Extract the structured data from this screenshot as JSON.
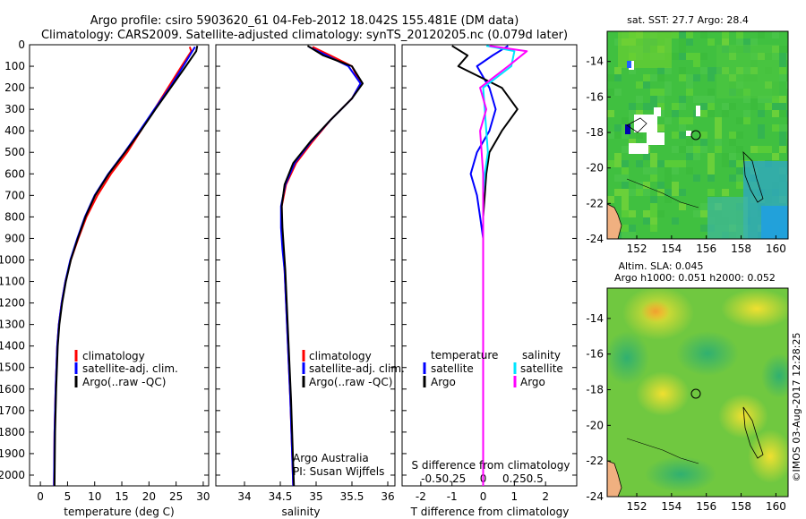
{
  "header": {
    "line1": "Argo profile: csiro 5903620_61 04-Feb-2012 18.042S 155.481E (DM data)",
    "line2": "Climatology: CARS2009. Satellite-adjusted climatology: synTS_20120205.nc (0.079d later)"
  },
  "colors": {
    "climatology": "#ff0000",
    "satellite": "#0000ff",
    "argo": "#000000",
    "sat_salinity": "#00e5ff",
    "argo_salinity": "#ff00ff"
  },
  "chart_data": [
    {
      "type": "line",
      "id": "temperature",
      "xlabel": "temperature (deg C)",
      "xlim": [
        -2,
        31
      ],
      "xticks": [
        0,
        5,
        10,
        15,
        20,
        25,
        30
      ],
      "ylim": [
        0,
        2050
      ],
      "yticks": [
        0,
        100,
        200,
        300,
        400,
        500,
        600,
        700,
        800,
        900,
        1000,
        1100,
        1200,
        1300,
        1400,
        1500,
        1600,
        1700,
        1800,
        1900,
        2000
      ],
      "legend": [
        "climatology",
        "satellite-adj. clim.",
        "Argo(..raw -QC)"
      ],
      "series": [
        {
          "name": "climatology",
          "color": "#ff0000",
          "x": [
            27.5,
            27.8,
            26,
            23.5,
            21,
            18.5,
            16,
            13,
            10.5,
            8.5,
            7,
            5.6,
            4.6,
            3.9,
            3.4,
            3.1,
            2.8,
            2.6,
            2.5
          ],
          "y": [
            10,
            30,
            100,
            200,
            300,
            400,
            500,
            600,
            700,
            800,
            900,
            1000,
            1100,
            1200,
            1300,
            1400,
            1600,
            1800,
            2050
          ]
        },
        {
          "name": "satellite-adj. clim.",
          "color": "#0000ff",
          "x": [
            28.5,
            28,
            26.3,
            23.8,
            21,
            18.3,
            15.5,
            12.5,
            10,
            8.2,
            6.8,
            5.5,
            4.6,
            3.9,
            3.4,
            3.1,
            2.8,
            2.6,
            2.5
          ],
          "y": [
            10,
            30,
            100,
            200,
            300,
            400,
            500,
            600,
            700,
            800,
            900,
            1000,
            1100,
            1200,
            1300,
            1400,
            1600,
            1800,
            2050
          ]
        },
        {
          "name": "Argo(..raw -QC)",
          "color": "#000000",
          "x": [
            28.9,
            28.7,
            26.8,
            24,
            21.2,
            18.5,
            15.6,
            12.6,
            10.1,
            8.3,
            6.9,
            5.6,
            4.7,
            4,
            3.5,
            3.2,
            2.9,
            2.7,
            2.6
          ],
          "y": [
            5,
            30,
            100,
            200,
            300,
            400,
            500,
            600,
            700,
            800,
            900,
            1000,
            1100,
            1200,
            1300,
            1400,
            1600,
            1800,
            2050
          ]
        }
      ]
    },
    {
      "type": "line",
      "id": "salinity",
      "xlabel": "salinity",
      "xlim": [
        33.6,
        36.1
      ],
      "xticks": [
        34,
        34.5,
        35,
        35.5,
        36
      ],
      "ylim": [
        0,
        2050
      ],
      "legend": [
        "climatology",
        "satellite-adj. clim.",
        "Argo(..raw -QC)"
      ],
      "annotation": [
        "Argo Australia",
        "PI: Susan Wijffels"
      ],
      "series": [
        {
          "name": "climatology",
          "color": "#ff0000",
          "x": [
            34.95,
            35.2,
            35.5,
            35.62,
            35.5,
            35.2,
            34.95,
            34.72,
            34.58,
            34.52,
            34.52,
            34.54,
            34.56,
            34.58,
            34.6,
            34.62,
            34.64,
            34.66,
            34.68
          ],
          "y": [
            10,
            50,
            100,
            180,
            250,
            350,
            450,
            550,
            650,
            750,
            850,
            950,
            1050,
            1200,
            1350,
            1500,
            1650,
            1850,
            2050
          ]
        },
        {
          "name": "satellite-adj. clim.",
          "color": "#0000ff",
          "x": [
            34.9,
            35.15,
            35.45,
            35.62,
            35.5,
            35.2,
            34.93,
            34.7,
            34.57,
            34.51,
            34.51,
            34.53,
            34.56,
            34.58,
            34.6,
            34.62,
            34.64,
            34.66,
            34.68
          ],
          "y": [
            10,
            50,
            100,
            180,
            250,
            350,
            450,
            550,
            650,
            750,
            850,
            950,
            1050,
            1200,
            1350,
            1500,
            1650,
            1850,
            2050
          ]
        },
        {
          "name": "Argo(..raw -QC)",
          "color": "#000000",
          "x": [
            34.88,
            35.1,
            35.5,
            35.65,
            35.5,
            35.2,
            34.92,
            34.68,
            34.56,
            34.52,
            34.53,
            34.55,
            34.57,
            34.59,
            34.61,
            34.63,
            34.65,
            34.67,
            34.69
          ],
          "y": [
            5,
            50,
            100,
            180,
            250,
            350,
            450,
            550,
            650,
            750,
            850,
            950,
            1050,
            1200,
            1350,
            1500,
            1650,
            1850,
            2050
          ]
        }
      ]
    },
    {
      "type": "line",
      "id": "difference",
      "xlabel": "T difference from climatology",
      "xlabel_top": "S difference from climatology",
      "xlim": [
        -2.6,
        3.0
      ],
      "xticks": [
        -2,
        -1,
        0,
        1,
        2
      ],
      "xticks_S": [
        "-0.5",
        "-0.25",
        "0",
        "0.25",
        "0.5"
      ],
      "ylim": [
        0,
        2050
      ],
      "legend": {
        "temperature_title": "temperature",
        "salinity_title": "salinity",
        "t_satellite": "satellite",
        "t_argo": "Argo",
        "s_satellite": "satellite",
        "s_argo": "Argo"
      },
      "series": [
        {
          "name": "T satellite",
          "color": "#0000ff",
          "x": [
            0.8,
            0.3,
            -0.2,
            0.2,
            0.4,
            0.2,
            -0.2,
            -0.4,
            -0.2,
            -0.1,
            0,
            0
          ],
          "y": [
            5,
            50,
            100,
            200,
            300,
            400,
            500,
            600,
            700,
            800,
            900,
            2050
          ]
        },
        {
          "name": "T Argo",
          "color": "#000000",
          "x": [
            -1.0,
            -0.5,
            -0.8,
            0.6,
            1.1,
            0.6,
            0.2,
            0.1,
            0.05,
            0,
            0,
            0
          ],
          "y": [
            5,
            50,
            100,
            200,
            300,
            400,
            500,
            600,
            700,
            800,
            900,
            2050
          ]
        },
        {
          "name": "S satellite",
          "color": "#00e5ff",
          "x": [
            0.1,
            1.0,
            0.9,
            0,
            0.05,
            0.1,
            0.15,
            0.05,
            0,
            0,
            0
          ],
          "y": [
            5,
            30,
            100,
            200,
            300,
            400,
            500,
            600,
            700,
            800,
            2050
          ]
        },
        {
          "name": "S Argo",
          "color": "#ff00ff",
          "x": [
            0.2,
            1.4,
            0.8,
            -0.1,
            0.1,
            -0.1,
            -0.05,
            0,
            0,
            0,
            0
          ],
          "y": [
            5,
            30,
            100,
            200,
            300,
            400,
            500,
            600,
            700,
            800,
            2050
          ]
        }
      ]
    },
    {
      "type": "heatmap",
      "id": "sst_map",
      "title": "sat. SST: 27.7  Argo: 28.4",
      "xticks": [
        152,
        154,
        156,
        158,
        160
      ],
      "yticks": [
        -14,
        -16,
        -18,
        -20,
        -22,
        -24
      ],
      "xlim": [
        150.3,
        160.7
      ],
      "ylim": [
        -24,
        -12.3
      ]
    },
    {
      "type": "heatmap",
      "id": "sla_map",
      "title_line1": "Altim. SLA: 0.045",
      "title_line2": "Argo h1000: 0.051  h2000: 0.052",
      "xticks": [
        152,
        154,
        156,
        158,
        160
      ],
      "yticks": [
        -14,
        -16,
        -18,
        -20,
        -22,
        -24
      ],
      "xlim": [
        150.3,
        160.7
      ],
      "ylim": [
        -24,
        -12.3
      ]
    }
  ],
  "footer": {
    "stamp": "©IMOS 03-Aug-2017 12:28:25"
  }
}
